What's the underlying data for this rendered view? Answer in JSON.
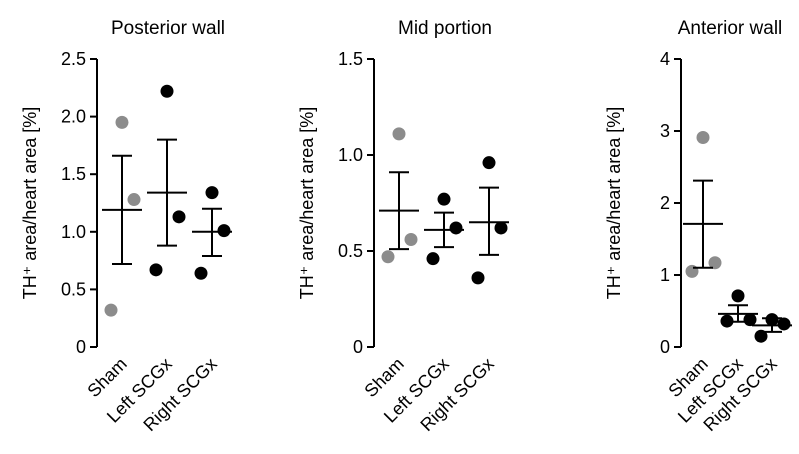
{
  "chart_data": [
    {
      "type": "scatter",
      "title": "Posterior wall",
      "ylabel": "TH⁺ area/heart area [%]",
      "ylim": [
        0,
        2.5
      ],
      "yticks": [
        0,
        0.5,
        1.0,
        1.5,
        2.0,
        2.5
      ],
      "ytick_labels": [
        "0",
        "0.5",
        "1.0",
        "1.5",
        "2.0",
        "2.5"
      ],
      "categories": [
        "Sham",
        "Left SCGx",
        "Right SCGx"
      ],
      "groups": [
        {
          "name": "Sham",
          "color": "#8c8c8c",
          "points": [
            1.95,
            1.28,
            0.32
          ],
          "mean": 1.19,
          "sem_low": 0.72,
          "sem_high": 1.66
        },
        {
          "name": "Left SCGx",
          "color": "#000000",
          "points": [
            2.22,
            1.13,
            0.67
          ],
          "mean": 1.34,
          "sem_low": 0.88,
          "sem_high": 1.8
        },
        {
          "name": "Right SCGx",
          "color": "#000000",
          "points": [
            1.34,
            1.01,
            0.64
          ],
          "mean": 1.0,
          "sem_low": 0.79,
          "sem_high": 1.2
        }
      ]
    },
    {
      "type": "scatter",
      "title": "Mid portion",
      "ylabel": "TH⁺ area/heart area [%]",
      "ylim": [
        0,
        1.5
      ],
      "yticks": [
        0,
        0.5,
        1.0,
        1.5
      ],
      "ytick_labels": [
        "0",
        "0.5",
        "1.0",
        "1.5"
      ],
      "categories": [
        "Sham",
        "Left SCGx",
        "Right SCGx"
      ],
      "groups": [
        {
          "name": "Sham",
          "color": "#8c8c8c",
          "points": [
            1.11,
            0.56,
            0.47
          ],
          "mean": 0.71,
          "sem_low": 0.51,
          "sem_high": 0.91
        },
        {
          "name": "Left SCGx",
          "color": "#000000",
          "points": [
            0.77,
            0.62,
            0.46
          ],
          "mean": 0.61,
          "sem_low": 0.52,
          "sem_high": 0.7
        },
        {
          "name": "Right SCGx",
          "color": "#000000",
          "points": [
            0.96,
            0.62,
            0.36
          ],
          "mean": 0.65,
          "sem_low": 0.48,
          "sem_high": 0.83
        }
      ]
    },
    {
      "type": "scatter",
      "title": "Anterior wall",
      "ylabel": "TH⁺ area/heart area [%]",
      "ylim": [
        0,
        4
      ],
      "yticks": [
        0,
        1,
        2,
        3,
        4
      ],
      "ytick_labels": [
        "0",
        "1",
        "2",
        "3",
        "4"
      ],
      "categories": [
        "Sham",
        "Left SCGx",
        "Right SCGx"
      ],
      "groups": [
        {
          "name": "Sham",
          "color": "#8c8c8c",
          "points": [
            2.91,
            1.17,
            1.05
          ],
          "mean": 1.71,
          "sem_low": 1.1,
          "sem_high": 2.31
        },
        {
          "name": "Left SCGx",
          "color": "#000000",
          "points": [
            0.71,
            0.38,
            0.36
          ],
          "mean": 0.46,
          "sem_low": 0.35,
          "sem_high": 0.58
        },
        {
          "name": "Right SCGx",
          "color": "#000000",
          "points": [
            0.38,
            0.32,
            0.15
          ],
          "mean": 0.3,
          "sem_low": 0.21,
          "sem_high": 0.4
        }
      ]
    }
  ]
}
